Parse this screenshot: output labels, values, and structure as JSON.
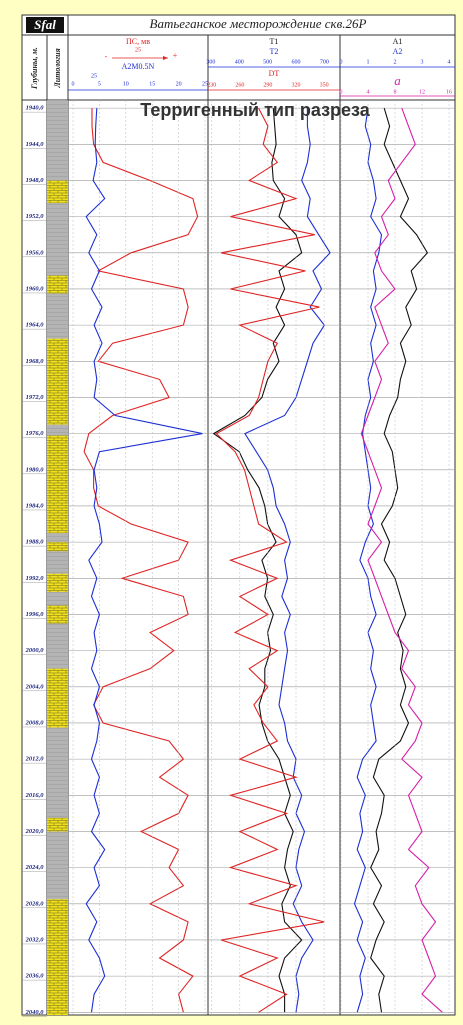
{
  "chart_data": {
    "type": "well-log",
    "title": "Ватьеганское месторождение  скв.26Р",
    "logo": "Sfal",
    "overlay_title": "Терригенный тип разреза",
    "depth_label": "Глубины, м.",
    "lithology_label": "Литология",
    "depth": [
      1940,
      1942,
      1944,
      1946,
      1948,
      1950,
      1952,
      1954,
      1956,
      1958,
      1960,
      1962,
      1964,
      1966,
      1968,
      1970,
      1972,
      1974,
      1976,
      1978,
      1980,
      1982,
      1984,
      1986,
      1988,
      1990,
      1992,
      1994,
      1996,
      1998,
      2000,
      2002,
      2004,
      2006,
      2008,
      2010,
      2012,
      2014,
      2016,
      2018,
      2020,
      2022,
      2024,
      2026,
      2028,
      2030,
      2032,
      2034,
      2036,
      2038,
      2040
    ],
    "ylim": [
      1939.1,
      2040.3
    ],
    "yticks": [
      {
        "value": 1940,
        "label": "1940,0"
      },
      {
        "value": 1944,
        "label": "1944,0"
      },
      {
        "value": 1948,
        "label": "1948,0"
      },
      {
        "value": 1952,
        "label": "1952,0"
      },
      {
        "value": 1956,
        "label": "1956,0"
      },
      {
        "value": 1960,
        "label": "1960,0"
      },
      {
        "value": 1964,
        "label": "1964,0"
      },
      {
        "value": 1968,
        "label": "1968,0"
      },
      {
        "value": 1972,
        "label": "1972,0"
      },
      {
        "value": 1976,
        "label": "1976,0"
      },
      {
        "value": 1980,
        "label": "1980,0"
      },
      {
        "value": 1984,
        "label": "1984,0"
      },
      {
        "value": 1988,
        "label": "1988,0"
      },
      {
        "value": 1992,
        "label": "1992,0"
      },
      {
        "value": 1996,
        "label": "1996,0"
      },
      {
        "value": 2000,
        "label": "2000,0"
      },
      {
        "value": 2004,
        "label": "2004,0"
      },
      {
        "value": 2008,
        "label": "2008,0"
      },
      {
        "value": 2012,
        "label": "2012,0"
      },
      {
        "value": 2016,
        "label": "2016,0"
      },
      {
        "value": 2020,
        "label": "2020,0"
      },
      {
        "value": 2024,
        "label": "2024,0"
      },
      {
        "value": 2028,
        "label": "2028,0"
      },
      {
        "value": 2032,
        "label": "2032,0"
      },
      {
        "value": 2036,
        "label": "2036,0"
      },
      {
        "value": 2040,
        "label": "2040,0"
      }
    ],
    "grid": true,
    "sand_intervals": [
      [
        1948,
        1950.5
      ],
      [
        1958.5,
        1960.5
      ],
      [
        1965.5,
        1975
      ],
      [
        1976.2,
        1987
      ],
      [
        1988,
        1989
      ],
      [
        1991.5,
        1993.5
      ],
      [
        1995,
        1997
      ],
      [
        2002,
        2008.5
      ],
      [
        2018.5,
        2020
      ],
      [
        2027.5,
        2040.3
      ]
    ],
    "tracks": [
      {
        "scale_label": "25",
        "polarity": [
          "-",
          "+"
        ],
        "extra_label": "25",
        "curves": [
          {
            "name": "ПС, мв",
            "color": "#e02424",
            "xlim": [
              0,
              25
            ],
            "values": [
              3.6,
              3.6,
              3.9,
              5.7,
              14.6,
              22.7,
              23.6,
              21.8,
              11,
              4.8,
              20.9,
              21.8,
              20.9,
              7.5,
              4.8,
              16.4,
              18.2,
              7.5,
              3,
              2.1,
              3.9,
              3.9,
              4.8,
              11,
              21.8,
              20,
              9.3,
              20.9,
              21.8,
              14.6,
              19.1,
              14.6,
              5.7,
              3.9,
              5.7,
              18.2,
              20.9,
              16.4,
              21.8,
              20,
              12.9,
              20,
              18.2,
              20.9,
              14.6,
              21.8,
              20.9,
              16.4,
              22.7,
              20,
              20.9
            ]
          },
          {
            "name": "A2M0.5N",
            "color": "#1c2fd6",
            "xlim": [
              0,
              25
            ],
            "xticks": [
              0,
              5,
              10,
              15,
              20,
              25
            ],
            "values": [
              4.5,
              4.3,
              4.2,
              4.5,
              3.8,
              6,
              2.5,
              4.5,
              3,
              5,
              3.5,
              5.5,
              4,
              5.5,
              4,
              4.5,
              4,
              8,
              24.5,
              5,
              4,
              4.5,
              4,
              5,
              5.5,
              3,
              4.5,
              3.5,
              5,
              4,
              4.5,
              3.5,
              5,
              4,
              5,
              4.5,
              3.5,
              5,
              4,
              5,
              3.5,
              6,
              4,
              5,
              2.5,
              4.5,
              3,
              5,
              6,
              4,
              3.5
            ]
          }
        ]
      },
      {
        "curves": [
          {
            "name": "T1",
            "color": "#111111",
            "xlim": [
              290,
              755
            ],
            "values": [
              520,
              525,
              530,
              515,
              520,
              560,
              540,
              600,
              620,
              540,
              560,
              530,
              560,
              520,
              540,
              500,
              480,
              420,
              310,
              400,
              430,
              470,
              490,
              500,
              530,
              480,
              500,
              490,
              520,
              500,
              510,
              490,
              490,
              470,
              480,
              500,
              540,
              560,
              580,
              560,
              590,
              570,
              560,
              580,
              550,
              560,
              620,
              560,
              540,
              560,
              560
            ]
          },
          {
            "name": "T2",
            "color": "#1c2fd6",
            "xlim": [
              290,
              755
            ],
            "xticks": [
              300,
              400,
              500,
              600,
              700
            ],
            "values": [
              640,
              640,
              650,
              640,
              620,
              650,
              640,
              680,
              720,
              660,
              690,
              650,
              700,
              660,
              640,
              620,
              600,
              560,
              420,
              460,
              500,
              520,
              530,
              560,
              580,
              560,
              570,
              550,
              580,
              560,
              570,
              560,
              550,
              540,
              560,
              570,
              600,
              590,
              620,
              600,
              630,
              610,
              600,
              620,
              590,
              620,
              660,
              620,
              600,
              610,
              600
            ]
          },
          {
            "name": "DT",
            "color": "#e02424",
            "xlim": [
              226,
              367
            ],
            "xticks": [
              230,
              260,
              290,
              320,
              350
            ],
            "values": [
              280,
              290,
              285,
              300,
              270,
              320,
              250,
              340,
              240,
              330,
              250,
              345,
              260,
              300,
              290,
              285,
              280,
              270,
              235,
              255,
              265,
              270,
              275,
              280,
              310,
              250,
              300,
              260,
              290,
              255,
              300,
              270,
              290,
              275,
              285,
              300,
              260,
              320,
              250,
              310,
              260,
              300,
              250,
              320,
              270,
              350,
              240,
              300,
              260,
              310,
              280
            ]
          }
        ]
      },
      {
        "curves": [
          {
            "name": "A1",
            "color": "#111111",
            "xlim": [
              0,
              4
            ],
            "values": [
              1.6,
              1.8,
              1.6,
              1.9,
              2.2,
              2.5,
              2.2,
              2.8,
              3.2,
              2.6,
              2.8,
              2.4,
              2.6,
              2.2,
              2.4,
              2.2,
              2.1,
              1.8,
              1.6,
              1.9,
              2,
              2.1,
              1.9,
              1.5,
              1.8,
              1.6,
              2,
              2.2,
              2.4,
              2.1,
              2.3,
              2.2,
              2.4,
              2.2,
              2.5,
              2.2,
              1.4,
              1.2,
              1.6,
              1.5,
              1.3,
              1.4,
              1.1,
              1.5,
              1.2,
              1.6,
              1.3,
              1.1,
              1.6,
              1.4,
              1.5
            ]
          },
          {
            "name": "A2",
            "color": "#1c2fd6",
            "xlim": [
              0,
              4
            ],
            "xticks": [
              0,
              1,
              2,
              3,
              4
            ],
            "values": [
              1,
              0.9,
              1.1,
              1,
              1.2,
              1.3,
              1.1,
              1.5,
              1.4,
              1.2,
              1.3,
              1.1,
              1.3,
              1.1,
              1.2,
              1,
              1.1,
              0.9,
              0.8,
              0.9,
              1,
              1.1,
              1,
              1.2,
              0.9,
              0.7,
              1,
              1.1,
              1.3,
              1,
              1.2,
              1.1,
              1.3,
              1.1,
              1.2,
              1.3,
              0.8,
              0.6,
              0.9,
              0.7,
              0.8,
              0.6,
              0.9,
              0.7,
              0.5,
              0.8,
              0.6,
              0.9,
              0.7,
              0.8,
              0.6
            ]
          },
          {
            "name": "a",
            "color": "#d61fa8",
            "xlim": [
              0,
              16
            ],
            "xticks": [
              0,
              4,
              8,
              12,
              16
            ],
            "values": [
              9,
              10,
              11,
              9,
              7,
              8,
              6,
              7,
              5,
              6,
              8,
              5,
              6,
              7,
              5,
              6,
              5,
              4,
              3,
              4,
              5,
              6,
              5,
              4,
              6,
              4,
              5,
              6,
              7,
              8,
              10,
              9,
              11,
              10,
              12,
              11,
              9,
              12,
              10,
              11,
              12,
              10,
              13,
              11,
              12,
              14,
              12,
              13,
              14,
              12,
              15
            ]
          }
        ]
      }
    ]
  }
}
